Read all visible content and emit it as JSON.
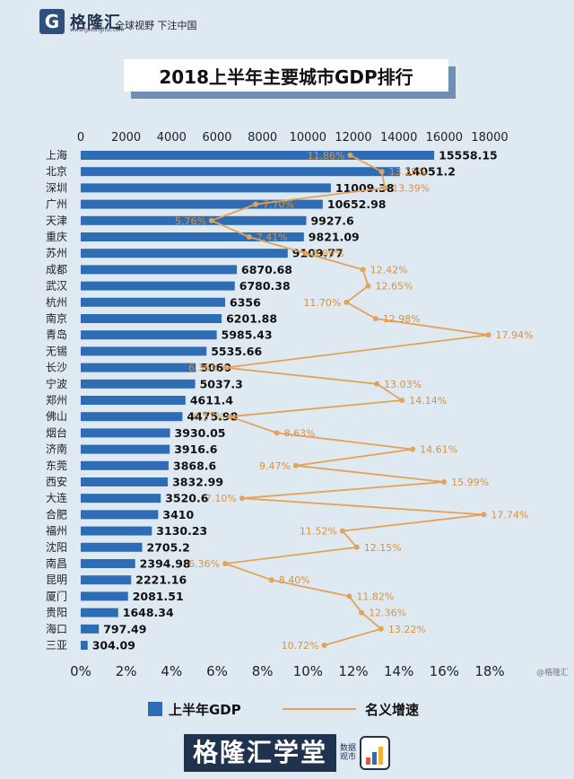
{
  "header": {
    "logo_mark": "G",
    "logo_text": "格隆汇",
    "logo_url": "www.gelonghui.com",
    "slogan": "全球视野 下注中国"
  },
  "title": "2018上半年主要城市GDP排行",
  "legend": {
    "bar_label": "上半年GDP",
    "line_label": "名义增速"
  },
  "footer": {
    "brand": "格隆汇学堂",
    "side_text": "数据观市"
  },
  "watermark_corner": "@格隆汇",
  "colors": {
    "bar": "#2e6db5",
    "line": "#e3a257",
    "label_pct": "#d9923e",
    "background": "#dfe9f2"
  },
  "chart_data": {
    "type": "bar",
    "orientation": "horizontal",
    "title": "2018上半年主要城市GDP排行",
    "categories": [
      "上海",
      "北京",
      "深圳",
      "广州",
      "天津",
      "重庆",
      "苏州",
      "成都",
      "武汉",
      "杭州",
      "南京",
      "青岛",
      "无锡",
      "长沙",
      "宁波",
      "郑州",
      "佛山",
      "烟台",
      "济南",
      "东莞",
      "西安",
      "大连",
      "合肥",
      "福州",
      "沈阳",
      "南昌",
      "昆明",
      "厦门",
      "贵阳",
      "海口",
      "三亚"
    ],
    "series": [
      {
        "name": "上半年GDP",
        "type": "bar",
        "axis": "top",
        "values": [
          15558.15,
          14051.2,
          11009.38,
          10652.98,
          9927.6,
          9821.09,
          9109.77,
          6870.68,
          6780.38,
          6356,
          6201.88,
          5985.43,
          5535.66,
          5060,
          5037.3,
          4611.4,
          4475.98,
          3930.05,
          3916.6,
          3868.6,
          3832.99,
          3520.6,
          3410,
          3130.23,
          2705.2,
          2394.98,
          2221.16,
          2081.51,
          1648.34,
          797.49,
          304.09
        ],
        "labels": [
          "15558.15",
          "14051.2",
          "11009.38",
          "10652.98",
          "9927.6",
          "9821.09",
          "9109.77",
          "6870.68",
          "6780.38",
          "6356",
          "6201.88",
          "5985.43",
          "5535.66",
          "5060",
          "5037.3",
          "4611.4",
          "4475.98",
          "3930.05",
          "3916.6",
          "3868.6",
          "3832.99",
          "3520.6",
          "3410",
          "3130.23",
          "2705.2",
          "2394.98",
          "2221.16",
          "2081.51",
          "1648.34",
          "797.49",
          "304.09"
        ]
      },
      {
        "name": "名义增速",
        "type": "line",
        "axis": "bottom",
        "values": [
          11.86,
          13.25,
          13.39,
          7.7,
          5.76,
          7.41,
          9.89,
          12.42,
          12.65,
          11.7,
          12.98,
          17.94,
          null,
          6.36,
          13.03,
          14.14,
          6.57,
          8.63,
          14.61,
          9.47,
          15.99,
          7.1,
          17.74,
          11.52,
          12.15,
          6.36,
          8.4,
          11.82,
          12.36,
          13.22,
          10.72
        ],
        "labels": [
          "11.86%",
          "13.25%",
          "13.39%",
          "7.70%",
          "5.76%",
          "7.41%",
          "9.89%",
          "12.42%",
          "12.65%",
          "11.70%",
          "12.98%",
          "17.94%",
          null,
          "6.36%",
          "13.03%",
          "14.14%",
          "6.57%",
          "8.63%",
          "14.61%",
          "9.47%",
          "15.99%",
          "7.10%",
          "17.74%",
          "11.52%",
          "12.15%",
          "6.36%",
          "8.40%",
          "11.82%",
          "12.36%",
          "13.22%",
          "10.72%"
        ]
      }
    ],
    "x_top": {
      "min": 0,
      "max": 18000,
      "ticks": [
        0,
        2000,
        4000,
        6000,
        8000,
        10000,
        12000,
        14000,
        16000,
        18000
      ],
      "tick_labels": [
        "0",
        "2000",
        "4000",
        "6000",
        "8000",
        "10000",
        "12000",
        "14000",
        "16000",
        "18000"
      ]
    },
    "x_bottom": {
      "min": 0,
      "max": 18,
      "ticks": [
        0,
        2,
        4,
        6,
        8,
        10,
        12,
        14,
        16,
        18
      ],
      "tick_labels": [
        "0%",
        "2%",
        "4%",
        "6%",
        "8%",
        "10%",
        "12%",
        "14%",
        "16%",
        "18%"
      ]
    },
    "grid": false
  }
}
